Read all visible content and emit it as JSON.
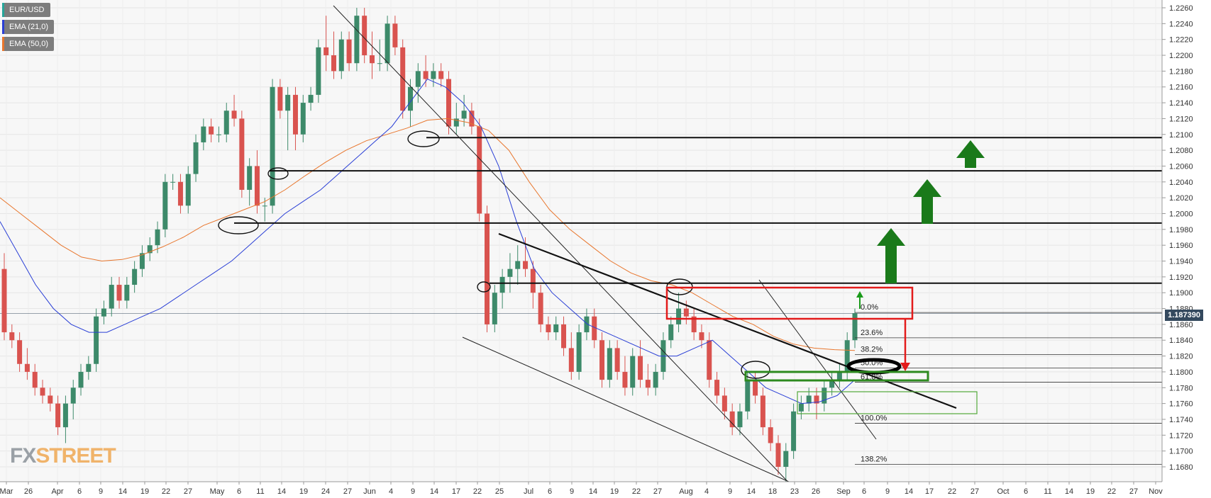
{
  "legend": [
    {
      "label": "EUR/USD",
      "color": "#26a69a"
    },
    {
      "label": "EMA (21,0)",
      "color": "#2a3fd6"
    },
    {
      "label": "EMA (50,0)",
      "color": "#e8762d"
    }
  ],
  "price_label": "1.187390",
  "watermark": {
    "part1": "FX",
    "part2": "STREET",
    "color1": "#9aa0a6",
    "color2": "#f0b36a"
  },
  "colors": {
    "bull": "#3d8a6a",
    "bear": "#d9534f",
    "ema21": "#2a3fd6",
    "ema50": "#e8762d",
    "green_arrow": "#1a7a1a",
    "red_box": "#e31b1b",
    "green_box": "#2d8a1f"
  },
  "chart_data": {
    "type": "candlestick",
    "symbol": "EUR/USD",
    "ylim": [
      1.166,
      1.2265
    ],
    "y_ticks": [
      "1.2260",
      "1.2240",
      "1.2220",
      "1.2200",
      "1.2180",
      "1.2160",
      "1.2140",
      "1.2120",
      "1.2100",
      "1.2080",
      "1.2060",
      "1.2040",
      "1.2020",
      "1.2000",
      "1.1980",
      "1.1960",
      "1.1940",
      "1.1920",
      "1.1900",
      "1.1880",
      "1.1860",
      "1.1840",
      "1.1820",
      "1.1800",
      "1.1780",
      "1.1760",
      "1.1740",
      "1.1720",
      "1.1700",
      "1.1680"
    ],
    "x_ticks": [
      "Mar",
      "26",
      "Apr",
      "6",
      "9",
      "14",
      "19",
      "22",
      "27",
      "May",
      "6",
      "11",
      "14",
      "19",
      "24",
      "27",
      "Jun",
      "4",
      "9",
      "14",
      "17",
      "22",
      "25",
      "Jul",
      "6",
      "9",
      "14",
      "19",
      "22",
      "27",
      "Aug",
      "4",
      "9",
      "14",
      "18",
      "23",
      "26",
      "Sep",
      "6",
      "9",
      "14",
      "17",
      "22",
      "27",
      "Oct",
      "6",
      "11",
      "14",
      "19",
      "22",
      "27",
      "Nov"
    ],
    "fib_levels": [
      {
        "label": "0.0%",
        "price": 1.1875
      },
      {
        "label": "23.6%",
        "price": 1.1843
      },
      {
        "label": "38.2%",
        "price": 1.1822
      },
      {
        "label": "50.0%",
        "price": 1.1805
      },
      {
        "label": "61.8%",
        "price": 1.1787
      },
      {
        "label": "100.0%",
        "price": 1.1735
      },
      {
        "label": "138.2%",
        "price": 1.1683
      }
    ],
    "horizontal_levels": [
      1.2096,
      1.2054,
      1.1988,
      1.1912
    ],
    "last_price": 1.18739,
    "candles": [
      [
        1.193,
        1.195,
        1.184,
        1.185
      ],
      [
        1.185,
        1.186,
        1.183,
        1.184
      ],
      [
        1.184,
        1.185,
        1.18,
        1.181
      ],
      [
        1.181,
        1.183,
        1.179,
        1.18
      ],
      [
        1.18,
        1.181,
        1.177,
        1.178
      ],
      [
        1.178,
        1.179,
        1.176,
        1.177
      ],
      [
        1.177,
        1.178,
        1.175,
        1.176
      ],
      [
        1.176,
        1.177,
        1.172,
        1.173
      ],
      [
        1.173,
        1.177,
        1.171,
        1.176
      ],
      [
        1.176,
        1.179,
        1.174,
        1.178
      ],
      [
        1.178,
        1.181,
        1.177,
        1.18
      ],
      [
        1.18,
        1.182,
        1.179,
        1.181
      ],
      [
        1.181,
        1.188,
        1.18,
        1.187
      ],
      [
        1.187,
        1.189,
        1.186,
        1.188
      ],
      [
        1.188,
        1.192,
        1.187,
        1.191
      ],
      [
        1.191,
        1.192,
        1.188,
        1.189
      ],
      [
        1.189,
        1.192,
        1.188,
        1.191
      ],
      [
        1.191,
        1.194,
        1.19,
        1.193
      ],
      [
        1.193,
        1.196,
        1.192,
        1.195
      ],
      [
        1.195,
        1.197,
        1.194,
        1.196
      ],
      [
        1.196,
        1.199,
        1.195,
        1.198
      ],
      [
        1.198,
        1.205,
        1.197,
        1.204
      ],
      [
        1.204,
        1.205,
        1.203,
        1.204
      ],
      [
        1.204,
        1.205,
        1.2,
        1.201
      ],
      [
        1.201,
        1.206,
        1.2,
        1.205
      ],
      [
        1.205,
        1.21,
        1.204,
        1.209
      ],
      [
        1.209,
        1.212,
        1.208,
        1.211
      ],
      [
        1.211,
        1.212,
        1.209,
        1.21
      ],
      [
        1.21,
        1.211,
        1.209,
        1.21
      ],
      [
        1.21,
        1.214,
        1.209,
        1.213
      ],
      [
        1.213,
        1.215,
        1.211,
        1.212
      ],
      [
        1.212,
        1.213,
        1.202,
        1.203
      ],
      [
        1.203,
        1.207,
        1.201,
        1.206
      ],
      [
        1.206,
        1.208,
        1.2,
        1.201
      ],
      [
        1.201,
        1.202,
        1.199,
        1.201
      ],
      [
        1.201,
        1.217,
        1.2,
        1.216
      ],
      [
        1.216,
        1.217,
        1.212,
        1.213
      ],
      [
        1.213,
        1.216,
        1.208,
        1.215
      ],
      [
        1.215,
        1.216,
        1.208,
        1.21
      ],
      [
        1.21,
        1.215,
        1.209,
        1.214
      ],
      [
        1.214,
        1.216,
        1.213,
        1.215
      ],
      [
        1.215,
        1.222,
        1.214,
        1.221
      ],
      [
        1.221,
        1.225,
        1.218,
        1.22
      ],
      [
        1.22,
        1.223,
        1.217,
        1.218
      ],
      [
        1.218,
        1.223,
        1.217,
        1.222
      ],
      [
        1.222,
        1.223,
        1.218,
        1.219
      ],
      [
        1.219,
        1.226,
        1.218,
        1.225
      ],
      [
        1.225,
        1.226,
        1.219,
        1.22
      ],
      [
        1.22,
        1.223,
        1.217,
        1.219
      ],
      [
        1.219,
        1.222,
        1.218,
        1.219
      ],
      [
        1.219,
        1.225,
        1.218,
        1.224
      ],
      [
        1.224,
        1.225,
        1.22,
        1.221
      ],
      [
        1.221,
        1.222,
        1.212,
        1.213
      ],
      [
        1.213,
        1.217,
        1.211,
        1.216
      ],
      [
        1.216,
        1.219,
        1.214,
        1.218
      ],
      [
        1.218,
        1.22,
        1.216,
        1.217
      ],
      [
        1.217,
        1.219,
        1.216,
        1.218
      ],
      [
        1.218,
        1.219,
        1.216,
        1.217
      ],
      [
        1.217,
        1.218,
        1.21,
        1.211
      ],
      [
        1.211,
        1.214,
        1.21,
        1.212
      ],
      [
        1.212,
        1.215,
        1.211,
        1.213
      ],
      [
        1.213,
        1.214,
        1.21,
        1.211
      ],
      [
        1.211,
        1.212,
        1.199,
        1.2
      ],
      [
        1.2,
        1.201,
        1.185,
        1.186
      ],
      [
        1.186,
        1.191,
        1.185,
        1.19
      ],
      [
        1.19,
        1.193,
        1.188,
        1.192
      ],
      [
        1.192,
        1.195,
        1.19,
        1.193
      ],
      [
        1.193,
        1.196,
        1.191,
        1.194
      ],
      [
        1.194,
        1.197,
        1.192,
        1.193
      ],
      [
        1.193,
        1.194,
        1.188,
        1.19
      ],
      [
        1.19,
        1.191,
        1.185,
        1.186
      ],
      [
        1.186,
        1.187,
        1.184,
        1.185
      ],
      [
        1.185,
        1.187,
        1.184,
        1.186
      ],
      [
        1.186,
        1.187,
        1.182,
        1.183
      ],
      [
        1.183,
        1.185,
        1.179,
        1.18
      ],
      [
        1.18,
        1.186,
        1.179,
        1.185
      ],
      [
        1.185,
        1.188,
        1.184,
        1.187
      ],
      [
        1.187,
        1.188,
        1.183,
        1.184
      ],
      [
        1.184,
        1.185,
        1.178,
        1.179
      ],
      [
        1.179,
        1.184,
        1.178,
        1.183
      ],
      [
        1.183,
        1.184,
        1.179,
        1.18
      ],
      [
        1.18,
        1.182,
        1.177,
        1.178
      ],
      [
        1.178,
        1.183,
        1.177,
        1.182
      ],
      [
        1.182,
        1.184,
        1.178,
        1.179
      ],
      [
        1.179,
        1.181,
        1.177,
        1.178
      ],
      [
        1.178,
        1.181,
        1.177,
        1.18
      ],
      [
        1.18,
        1.185,
        1.179,
        1.184
      ],
      [
        1.184,
        1.187,
        1.183,
        1.186
      ],
      [
        1.186,
        1.19,
        1.185,
        1.188
      ],
      [
        1.188,
        1.189,
        1.186,
        1.187
      ],
      [
        1.187,
        1.188,
        1.184,
        1.185
      ],
      [
        1.185,
        1.186,
        1.183,
        1.184
      ],
      [
        1.184,
        1.185,
        1.178,
        1.179
      ],
      [
        1.179,
        1.18,
        1.176,
        1.177
      ],
      [
        1.177,
        1.178,
        1.174,
        1.175
      ],
      [
        1.175,
        1.176,
        1.172,
        1.173
      ],
      [
        1.173,
        1.176,
        1.172,
        1.175
      ],
      [
        1.175,
        1.18,
        1.174,
        1.179
      ],
      [
        1.179,
        1.18,
        1.176,
        1.177
      ],
      [
        1.177,
        1.178,
        1.172,
        1.173
      ],
      [
        1.173,
        1.174,
        1.17,
        1.171
      ],
      [
        1.171,
        1.172,
        1.167,
        1.168
      ],
      [
        1.168,
        1.171,
        1.166,
        1.17
      ],
      [
        1.17,
        1.176,
        1.169,
        1.175
      ],
      [
        1.175,
        1.177,
        1.174,
        1.176
      ],
      [
        1.176,
        1.178,
        1.175,
        1.177
      ],
      [
        1.177,
        1.178,
        1.174,
        1.176
      ],
      [
        1.176,
        1.179,
        1.175,
        1.178
      ],
      [
        1.178,
        1.18,
        1.177,
        1.179
      ],
      [
        1.179,
        1.181,
        1.178,
        1.18
      ],
      [
        1.18,
        1.185,
        1.179,
        1.184
      ],
      [
        1.184,
        1.188,
        1.183,
        1.1874
      ]
    ],
    "ema21": [
      1.199,
      1.195,
      1.191,
      1.188,
      1.186,
      1.185,
      1.185,
      1.186,
      1.187,
      1.188,
      1.1895,
      1.191,
      1.1925,
      1.194,
      1.196,
      1.198,
      1.2,
      1.2015,
      1.203,
      1.205,
      1.207,
      1.209,
      1.211,
      1.214,
      1.217,
      1.216,
      1.214,
      1.211,
      1.206,
      1.199,
      1.193,
      1.19,
      1.188,
      1.186,
      1.185,
      1.184,
      1.183,
      1.182,
      1.182,
      1.183,
      1.184,
      1.182,
      1.18,
      1.178,
      1.177,
      1.176,
      1.1762,
      1.177,
      1.179
    ],
    "ema50": [
      1.202,
      1.2,
      1.198,
      1.196,
      1.1945,
      1.194,
      1.1942,
      1.1948,
      1.1958,
      1.197,
      1.1985,
      1.1995,
      1.2005,
      1.2015,
      1.203,
      1.2048,
      1.2065,
      1.208,
      1.2092,
      1.21,
      1.2108,
      1.2118,
      1.212,
      1.2115,
      1.2105,
      1.208,
      1.204,
      1.2005,
      1.198,
      1.196,
      1.194,
      1.1925,
      1.1915,
      1.191,
      1.19,
      1.1885,
      1.187,
      1.186,
      1.1845,
      1.1835,
      1.183,
      1.1828,
      1.1827
    ]
  }
}
